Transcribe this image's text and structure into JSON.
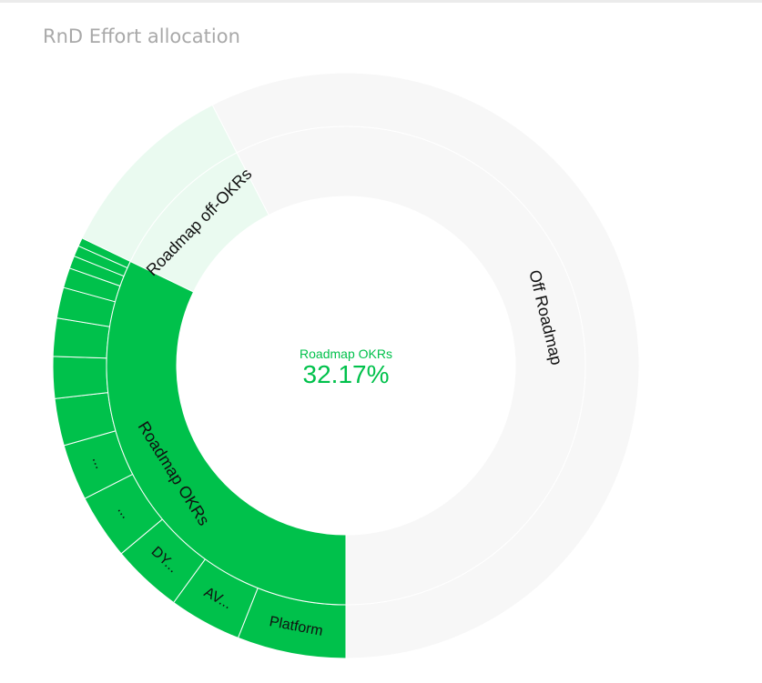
{
  "card": {
    "title": "RnD Effort allocation"
  },
  "colors": {
    "primary": "#00c14b",
    "secondary": "#eafaf0",
    "neutral": "#f7f7f7",
    "divider": "#ffffff"
  },
  "chart_data": {
    "type": "sunburst",
    "title": "RnD Effort allocation",
    "center": {
      "label": "Roadmap OKRs",
      "value": "32.17%"
    },
    "inner_ring": [
      {
        "name": "Roadmap OKRs",
        "share": 32.17,
        "color": "#00c14b",
        "label": "Roadmap OKRs"
      },
      {
        "name": "Roadmap off-OKRs",
        "share": 10.3,
        "color": "#eafaf0",
        "label": "Roadmap off-OKRs"
      },
      {
        "name": "Off Roadmap",
        "share": 57.53,
        "color": "#f7f7f7",
        "label": "Off Roadmap"
      }
    ],
    "outer_ring": [
      {
        "parent": "Roadmap OKRs",
        "share": 6.0,
        "label": "Platform",
        "color": "#00c14b"
      },
      {
        "parent": "Roadmap OKRs",
        "share": 4.0,
        "label": "AV...",
        "color": "#00c14b"
      },
      {
        "parent": "Roadmap OKRs",
        "share": 3.9,
        "label": "DY...",
        "color": "#00c14b"
      },
      {
        "parent": "Roadmap OKRs",
        "share": 3.6,
        "label": "...",
        "color": "#00c14b"
      },
      {
        "parent": "Roadmap OKRs",
        "share": 3.1,
        "label": "...",
        "color": "#00c14b"
      },
      {
        "parent": "Roadmap OKRs",
        "share": 2.6,
        "label": "",
        "color": "#00c14b"
      },
      {
        "parent": "Roadmap OKRs",
        "share": 2.3,
        "label": "",
        "color": "#00c14b"
      },
      {
        "parent": "Roadmap OKRs",
        "share": 2.1,
        "label": "",
        "color": "#00c14b"
      },
      {
        "parent": "Roadmap OKRs",
        "share": 1.7,
        "label": "",
        "color": "#00c14b"
      },
      {
        "parent": "Roadmap OKRs",
        "share": 1.1,
        "label": "",
        "color": "#00c14b"
      },
      {
        "parent": "Roadmap OKRs",
        "share": 0.7,
        "label": "",
        "color": "#00c14b"
      },
      {
        "parent": "Roadmap OKRs",
        "share": 0.6,
        "label": "",
        "color": "#00c14b"
      },
      {
        "parent": "Roadmap OKRs",
        "share": 0.47,
        "label": "",
        "color": "#00c14b"
      },
      {
        "parent": "Roadmap off-OKRs",
        "share": 10.3,
        "label": "",
        "color": "#eafaf0"
      },
      {
        "parent": "Off Roadmap",
        "share": 57.53,
        "label": "",
        "color": "#f7f7f7"
      }
    ]
  }
}
